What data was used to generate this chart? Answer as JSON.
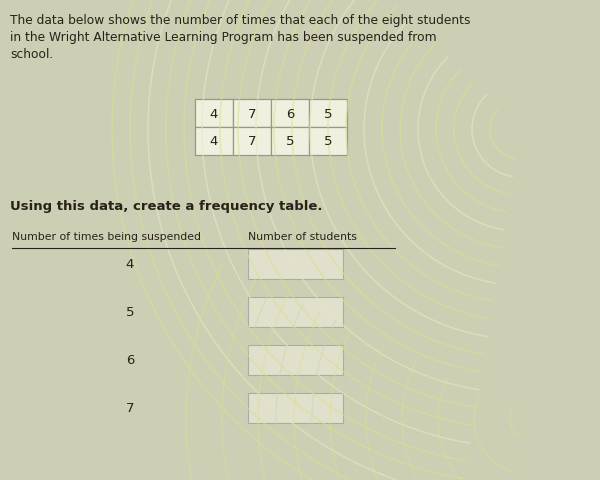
{
  "paragraph_text_line1": "The data below shows the number of times that each of the eight students",
  "paragraph_text_line2": "in the Wright Alternative Learning Program has been suspended from",
  "paragraph_text_line3": "school.",
  "data_grid": [
    [
      4,
      7,
      6,
      5
    ],
    [
      4,
      7,
      5,
      5
    ]
  ],
  "instruction_text": "Using this data, create a frequency table.",
  "freq_table_col1_header": "Number of times being suspended",
  "freq_table_col2_header": "Number of students",
  "freq_table_rows": [
    "4",
    "5",
    "6",
    "7"
  ],
  "bg_color": "#cccfb4",
  "swirl_yellow": "#dede90",
  "swirl_light": "#e8e8c0",
  "swirl_white": "#d0d4b0",
  "text_color": "#2a2218",
  "grid_cell_bg": "#f0f0e0",
  "grid_border": "#999980",
  "answer_box_color": "#e0e0cc",
  "answer_box_border": "#aaaaaa",
  "font_size_body": 8.8,
  "font_size_instruction": 9.5,
  "font_size_header": 7.8,
  "font_size_row": 9.5,
  "font_size_grid": 9.5
}
